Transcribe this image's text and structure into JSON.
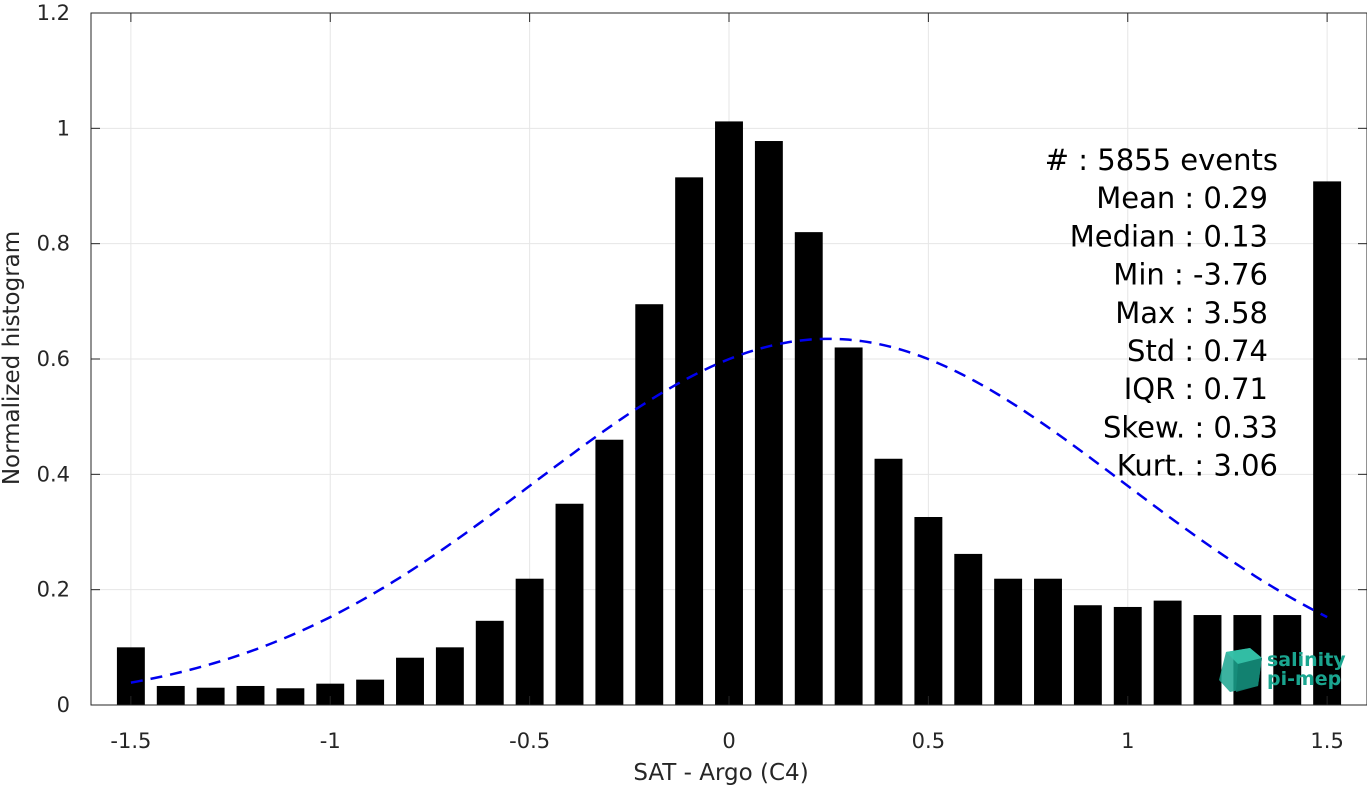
{
  "chart_data": {
    "type": "bar",
    "xlabel": "SAT - Argo (C4)",
    "ylabel": "Normalized histogram",
    "xlim": [
      -1.6,
      1.6
    ],
    "ylim": [
      0,
      1.2
    ],
    "xticks": [
      -1.5,
      -1,
      -0.5,
      0,
      0.5,
      1,
      1.5
    ],
    "xtick_labels": [
      "-1.5",
      "-1",
      "-0.5",
      "0",
      "0.5",
      "1",
      "1.5"
    ],
    "yticks": [
      0,
      0.2,
      0.4,
      0.6,
      0.8,
      1,
      1.2
    ],
    "ytick_labels": [
      "0",
      "0.2",
      "0.4",
      "0.6",
      "0.8",
      "1",
      "1.2"
    ],
    "grid": true,
    "bar_color": "#000000",
    "bar_width": 0.07,
    "x": [
      -1.5,
      -1.4,
      -1.3,
      -1.2,
      -1.1,
      -1.0,
      -0.9,
      -0.8,
      -0.7,
      -0.6,
      -0.5,
      -0.4,
      -0.3,
      -0.2,
      -0.1,
      0.0,
      0.1,
      0.2,
      0.3,
      0.4,
      0.5,
      0.6,
      0.7,
      0.8,
      0.9,
      1.0,
      1.1,
      1.2,
      1.3,
      1.4,
      1.5
    ],
    "values": [
      0.1,
      0.033,
      0.03,
      0.033,
      0.029,
      0.037,
      0.044,
      0.082,
      0.1,
      0.146,
      0.219,
      0.349,
      0.46,
      0.695,
      0.915,
      1.012,
      0.978,
      0.82,
      0.62,
      0.427,
      0.326,
      0.262,
      0.219,
      0.219,
      0.173,
      0.17,
      0.181,
      0.156,
      0.156,
      0.156,
      0.908
    ],
    "fit_curve": {
      "style": "dashed",
      "color": "#0000ee",
      "mean": 0.25,
      "std": 0.74,
      "peak": 0.635,
      "x_range": [
        -1.5,
        1.5
      ]
    },
    "stats": [
      "#  : 5855 events",
      "Mean : 0.29",
      "Median : 0.13",
      "Min : -3.76",
      "Max : 3.58",
      "Std : 0.74",
      "IQR : 0.71",
      "Skew. : 0.33",
      "Kurt. : 3.06"
    ]
  },
  "logo": {
    "line1": "salinity",
    "line2": "pi-mep",
    "color": "#1aa58f"
  }
}
